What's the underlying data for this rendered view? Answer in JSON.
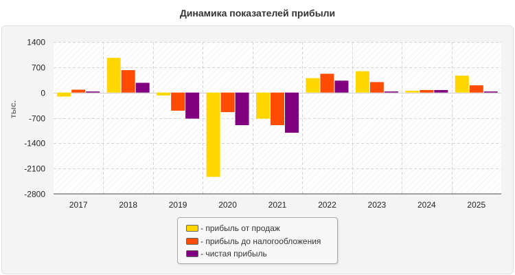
{
  "chart_data": {
    "type": "bar",
    "title": "Динамика показателей прибыли",
    "ylabel": "тыс.",
    "xlabel": "",
    "categories": [
      "2017",
      "2018",
      "2019",
      "2020",
      "2021",
      "2022",
      "2023",
      "2024",
      "2025"
    ],
    "series": [
      {
        "name": "прибыль от продаж",
        "color": "#ffd700",
        "values": [
          -110,
          960,
          -80,
          -2330,
          -720,
          400,
          590,
          50,
          470
        ]
      },
      {
        "name": "прибыль до налогообложения",
        "color": "#ff4c00",
        "values": [
          80,
          620,
          -500,
          -540,
          -900,
          520,
          290,
          70,
          200
        ]
      },
      {
        "name": "чистая прибыль",
        "color": "#800080",
        "values": [
          30,
          270,
          -720,
          -900,
          -1110,
          330,
          30,
          70,
          30
        ]
      }
    ],
    "ylim": [
      -2800,
      1400
    ],
    "yticks": [
      1400,
      700,
      0,
      -700,
      -1400,
      -2100,
      -2800
    ],
    "ytick_labels": [
      "1400",
      "700",
      "0",
      "-700",
      "-1400",
      "-2100",
      "-2800"
    ],
    "grid": true,
    "legend_position": "bottom-center"
  }
}
